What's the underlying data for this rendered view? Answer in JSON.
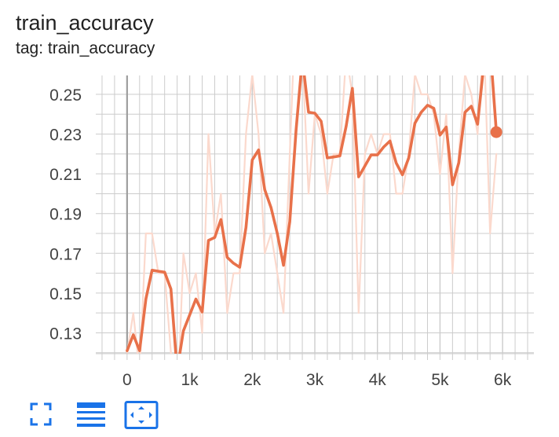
{
  "card": {
    "title": "train_accuracy",
    "subtitle": "tag: train_accuracy"
  },
  "colors": {
    "smoothed": "#e8714a",
    "raw": "#fbd9cd",
    "grid": "#cccccc",
    "axis_zero": "#9e9e9e",
    "toolbar_icon": "#1a73e8"
  },
  "toolbar": {
    "icons": [
      "fullscreen-icon",
      "toggle-log-scale-icon",
      "fit-domain-icon"
    ]
  },
  "chart_data": {
    "type": "line",
    "title": "train_accuracy",
    "xlabel": "",
    "ylabel": "",
    "xlim": [
      -500,
      6500
    ],
    "ylim": [
      0.1195,
      0.2595
    ],
    "x_ticks": [
      0,
      1000,
      2000,
      3000,
      4000,
      5000,
      6000
    ],
    "x_tick_labels": [
      "0",
      "1k",
      "2k",
      "3k",
      "4k",
      "5k",
      "6k"
    ],
    "y_ticks": [
      0.13,
      0.15,
      0.17,
      0.19,
      0.21,
      0.23,
      0.25
    ],
    "y_tick_labels": [
      "0.13",
      "0.15",
      "0.17",
      "0.19",
      "0.21",
      "0.23",
      "0.25"
    ],
    "grid": true,
    "series": [
      {
        "role": "raw",
        "x": [
          0,
          100,
          200,
          300,
          400,
          500,
          600,
          700,
          800,
          900,
          1000,
          1100,
          1200,
          1300,
          1400,
          1500,
          1600,
          1700,
          1800,
          1900,
          2000,
          2100,
          2200,
          2300,
          2400,
          2500,
          2600,
          2700,
          2800,
          2900,
          3000,
          3100,
          3200,
          3300,
          3400,
          3500,
          3600,
          3700,
          3800,
          3900,
          4000,
          4100,
          4200,
          4300,
          4400,
          4500,
          4600,
          4700,
          4800,
          4900,
          5000,
          5100,
          5200,
          5300,
          5400,
          5500,
          5600,
          5700,
          5800,
          5900
        ],
        "y": [
          0.12,
          0.14,
          0.11,
          0.18,
          0.18,
          0.16,
          0.16,
          0.12,
          0.09,
          0.17,
          0.15,
          0.16,
          0.13,
          0.23,
          0.18,
          0.2,
          0.14,
          0.16,
          0.16,
          0.23,
          0.26,
          0.23,
          0.17,
          0.18,
          0.16,
          0.14,
          0.22,
          0.3,
          0.27,
          0.2,
          0.24,
          0.23,
          0.2,
          0.22,
          0.22,
          0.27,
          0.25,
          0.14,
          0.22,
          0.23,
          0.22,
          0.23,
          0.23,
          0.2,
          0.2,
          0.22,
          0.26,
          0.25,
          0.25,
          0.24,
          0.21,
          0.24,
          0.16,
          0.22,
          0.26,
          0.25,
          0.23,
          0.28,
          0.18,
          0.22
        ]
      },
      {
        "role": "smoothed",
        "x": [
          0,
          100,
          200,
          300,
          400,
          500,
          600,
          700,
          800,
          900,
          1000,
          1100,
          1200,
          1300,
          1400,
          1500,
          1600,
          1700,
          1800,
          1900,
          2000,
          2100,
          2200,
          2300,
          2400,
          2500,
          2600,
          2700,
          2800,
          2900,
          3000,
          3100,
          3200,
          3300,
          3400,
          3500,
          3600,
          3700,
          3800,
          3900,
          4000,
          4100,
          4200,
          4300,
          4400,
          4500,
          4600,
          4700,
          4800,
          4900,
          5000,
          5100,
          5200,
          5300,
          5400,
          5500,
          5600,
          5700,
          5800,
          5900
        ],
        "y": [
          0.121,
          0.129,
          0.121,
          0.147,
          0.1615,
          0.161,
          0.1605,
          0.152,
          0.111,
          0.131,
          0.139,
          0.147,
          0.1405,
          0.1765,
          0.178,
          0.187,
          0.168,
          0.165,
          0.163,
          0.183,
          0.217,
          0.222,
          0.202,
          0.193,
          0.18,
          0.164,
          0.186,
          0.232,
          0.268,
          0.241,
          0.2405,
          0.2365,
          0.218,
          0.2185,
          0.219,
          0.234,
          0.253,
          0.2085,
          0.214,
          0.2195,
          0.2195,
          0.2235,
          0.2265,
          0.2155,
          0.2095,
          0.218,
          0.2355,
          0.241,
          0.2445,
          0.243,
          0.2295,
          0.2335,
          0.2045,
          0.2155,
          0.241,
          0.244,
          0.235,
          0.265,
          0.2745,
          0.231
        ]
      }
    ]
  }
}
